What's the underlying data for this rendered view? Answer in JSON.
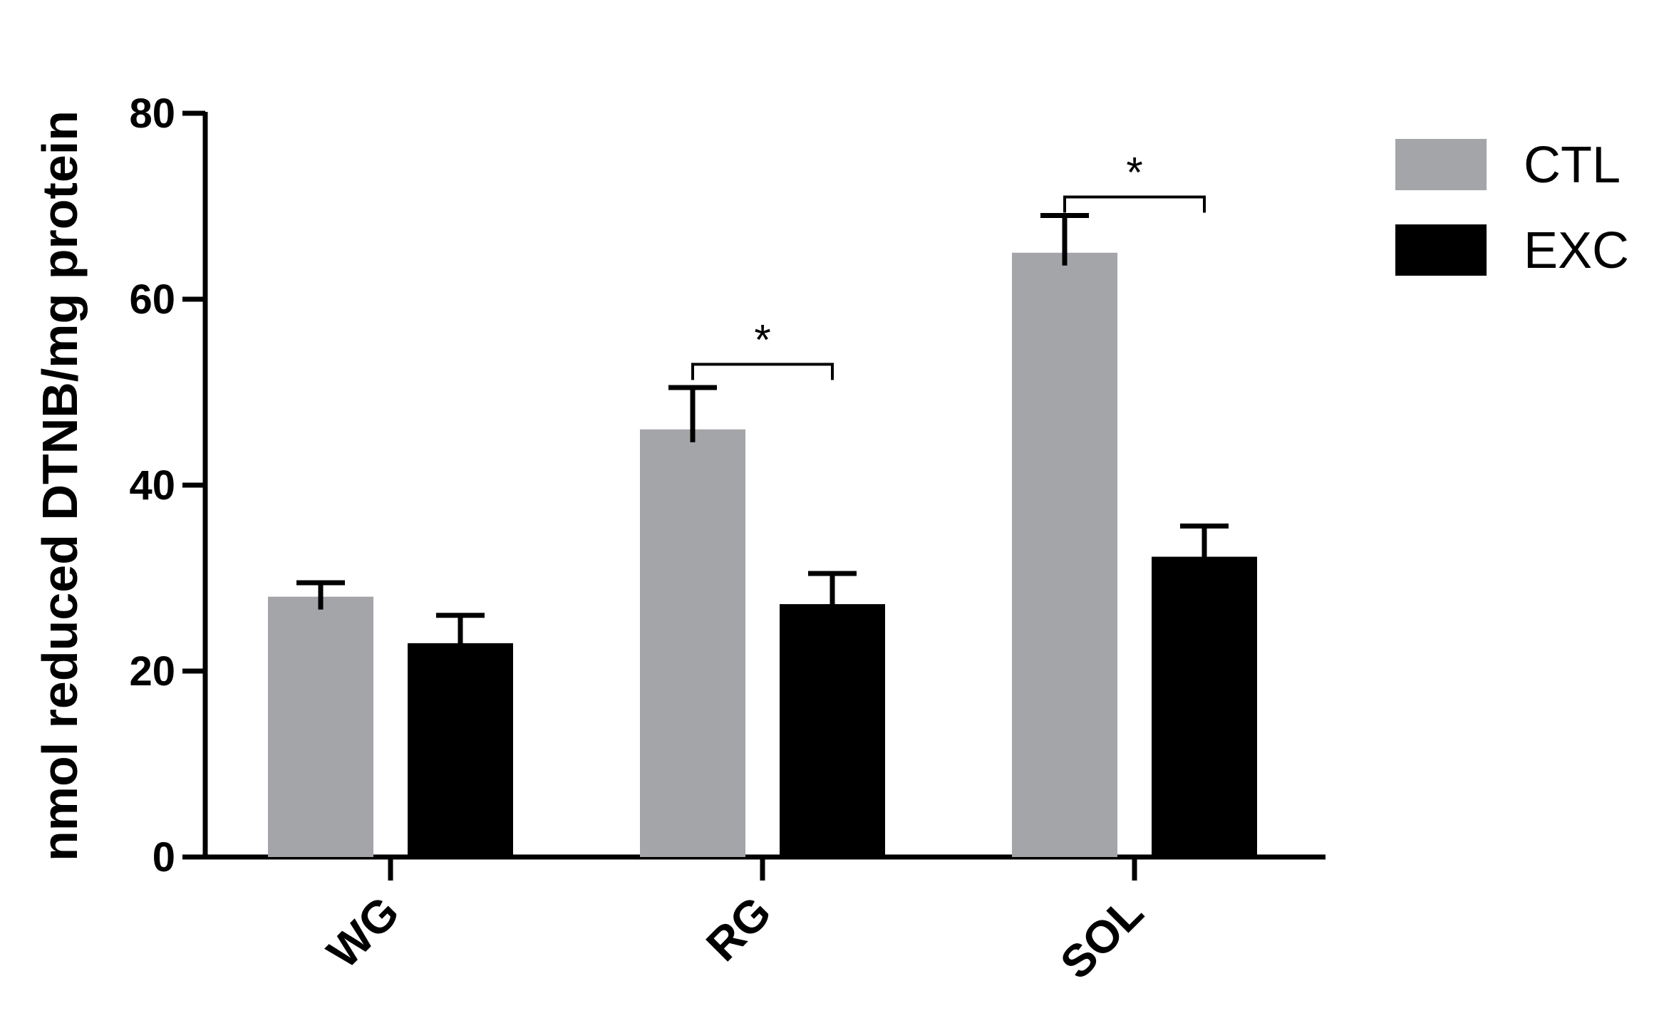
{
  "chart_data": {
    "type": "bar",
    "categories": [
      "WG",
      "RG",
      "SOL"
    ],
    "series": [
      {
        "name": "CTL",
        "color": "#a4a5a9",
        "values": [
          28,
          46,
          65
        ],
        "errors": [
          1.5,
          4.5,
          4
        ]
      },
      {
        "name": "EXC",
        "color": "#000000",
        "values": [
          23,
          27.2,
          32.3
        ],
        "errors": [
          3,
          3.3,
          3.3
        ]
      }
    ],
    "ylabel": "nmol reduced DTNB/mg protein",
    "xlabel": "",
    "ylim": [
      0,
      80
    ],
    "yticks": [
      0,
      20,
      40,
      60,
      80
    ],
    "grid": false,
    "legend_position": "top-right",
    "significance": [
      {
        "category": "RG",
        "label": "*",
        "value": 53
      },
      {
        "category": "SOL",
        "label": "*",
        "value": 71
      }
    ]
  }
}
